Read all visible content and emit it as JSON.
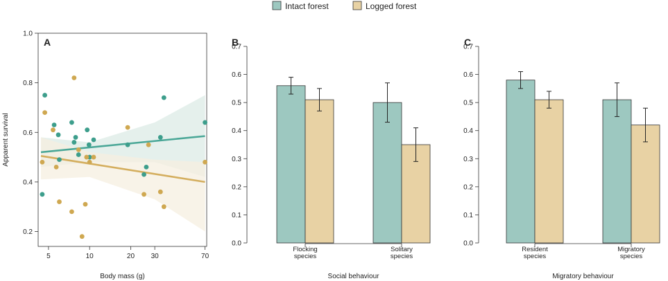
{
  "legend": {
    "items": [
      {
        "label": "Intact forest",
        "color": "#9dc8c0"
      },
      {
        "label": "Logged forest",
        "color": "#e8d2a4"
      }
    ]
  },
  "colors": {
    "intact_line": "#4aa797",
    "logged_line": "#d4ae5e",
    "intact_point": "#3d9e8c",
    "logged_point": "#cfa851",
    "intact_band": "#dcebe6",
    "logged_band": "#f5efe0"
  },
  "chart_data": [
    {
      "type": "scatter",
      "panel": "A",
      "xlabel": "Body mass (g)",
      "ylabel": "Apparent survival",
      "x_scale": "log",
      "xlim": [
        4.2,
        72
      ],
      "ylim": [
        0.14,
        1.0
      ],
      "x_ticks": [
        5,
        10,
        20,
        30,
        70
      ],
      "x_tick_labels": [
        "5",
        "10",
        "20",
        "30",
        "70"
      ],
      "y_ticks": [
        0.2,
        0.4,
        0.6,
        0.8,
        1.0
      ],
      "y_tick_labels": [
        "0.2",
        "0.4",
        "0.6",
        "0.8",
        "1.0"
      ],
      "series": [
        {
          "name": "Intact forest",
          "points": [
            [
              4.5,
              0.35
            ],
            [
              4.7,
              0.75
            ],
            [
              5.5,
              0.63
            ],
            [
              5.9,
              0.59
            ],
            [
              6.0,
              0.49
            ],
            [
              7.4,
              0.64
            ],
            [
              7.7,
              0.56
            ],
            [
              7.9,
              0.58
            ],
            [
              8.3,
              0.51
            ],
            [
              9.6,
              0.61
            ],
            [
              9.9,
              0.55
            ],
            [
              10.0,
              0.5
            ],
            [
              10.7,
              0.57
            ],
            [
              19.0,
              0.55
            ],
            [
              25.0,
              0.43
            ],
            [
              26.0,
              0.46
            ],
            [
              33.0,
              0.58
            ],
            [
              35.0,
              0.74
            ],
            [
              70.0,
              0.64
            ]
          ],
          "trend": {
            "x": [
              4.4,
              70
            ],
            "y": [
              0.52,
              0.585
            ]
          },
          "band_upper": [
            [
              4.4,
              0.58
            ],
            [
              10,
              0.56
            ],
            [
              30,
              0.64
            ],
            [
              70,
              0.75
            ]
          ],
          "band_lower": [
            [
              4.4,
              0.46
            ],
            [
              10,
              0.48
            ],
            [
              30,
              0.48
            ],
            [
              70,
              0.42
            ]
          ]
        },
        {
          "name": "Logged forest",
          "points": [
            [
              4.5,
              0.48
            ],
            [
              4.7,
              0.68
            ],
            [
              5.4,
              0.61
            ],
            [
              5.7,
              0.46
            ],
            [
              6.0,
              0.32
            ],
            [
              7.4,
              0.28
            ],
            [
              7.7,
              0.82
            ],
            [
              8.3,
              0.53
            ],
            [
              8.8,
              0.18
            ],
            [
              9.3,
              0.31
            ],
            [
              9.5,
              0.5
            ],
            [
              10.0,
              0.48
            ],
            [
              10.7,
              0.5
            ],
            [
              19.0,
              0.62
            ],
            [
              25.0,
              0.35
            ],
            [
              27.0,
              0.55
            ],
            [
              33.0,
              0.36
            ],
            [
              35.0,
              0.3
            ],
            [
              70.0,
              0.48
            ]
          ],
          "trend": {
            "x": [
              4.4,
              70
            ],
            "y": [
              0.505,
              0.4
            ]
          },
          "band_upper": [
            [
              4.4,
              0.58
            ],
            [
              10,
              0.52
            ],
            [
              30,
              0.49
            ],
            [
              70,
              0.48
            ]
          ],
          "band_lower": [
            [
              4.4,
              0.41
            ],
            [
              10,
              0.42
            ],
            [
              30,
              0.33
            ],
            [
              70,
              0.2
            ]
          ]
        }
      ]
    },
    {
      "type": "bar",
      "panel": "B",
      "xlabel": "Social behaviour",
      "categories": [
        "Flocking\nspecies",
        "Solitary\nspecies"
      ],
      "ylim": [
        0,
        0.7
      ],
      "y_ticks": [
        0.0,
        0.1,
        0.2,
        0.3,
        0.4,
        0.5,
        0.6,
        0.7
      ],
      "y_tick_labels": [
        "0.0",
        "0.1",
        "0.2",
        "0.3",
        "0.4",
        "0.5",
        "0.6",
        "0.7"
      ],
      "series": [
        {
          "name": "Intact forest",
          "values": [
            0.56,
            0.5
          ],
          "ci_low": [
            0.53,
            0.43
          ],
          "ci_high": [
            0.59,
            0.57
          ]
        },
        {
          "name": "Logged forest",
          "values": [
            0.51,
            0.35
          ],
          "ci_low": [
            0.47,
            0.29
          ],
          "ci_high": [
            0.55,
            0.41
          ]
        }
      ]
    },
    {
      "type": "bar",
      "panel": "C",
      "xlabel": "Migratory behaviour",
      "categories": [
        "Resident\nspecies",
        "Migratory\nspecies"
      ],
      "ylim": [
        0,
        0.7
      ],
      "y_ticks": [
        0.0,
        0.1,
        0.2,
        0.3,
        0.4,
        0.5,
        0.6,
        0.7
      ],
      "y_tick_labels": [
        "0.0",
        "0.1",
        "0.2",
        "0.3",
        "0.4",
        "0.5",
        "0.6",
        "0.7"
      ],
      "series": [
        {
          "name": "Intact forest",
          "values": [
            0.58,
            0.51
          ],
          "ci_low": [
            0.55,
            0.45
          ],
          "ci_high": [
            0.61,
            0.57
          ]
        },
        {
          "name": "Logged forest",
          "values": [
            0.51,
            0.42
          ],
          "ci_low": [
            0.48,
            0.36
          ],
          "ci_high": [
            0.54,
            0.48
          ]
        }
      ]
    }
  ]
}
